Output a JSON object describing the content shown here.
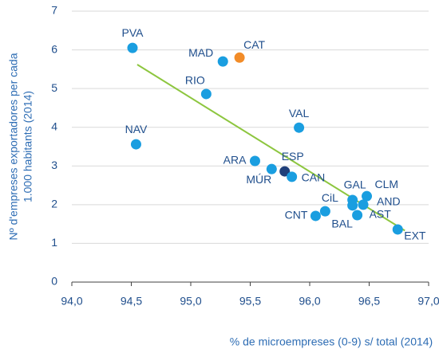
{
  "chart_data": {
    "type": "scatter",
    "ylabel": [
      "Nº d'empreses exportadores per cada",
      "1.000 habitants (2014)"
    ],
    "xlabel": "% de microempreses (0-9) s/ total (2014)",
    "labels": [
      "PVA",
      "MAD",
      "CAT",
      "RIO",
      "VAL",
      "NAV",
      "ARA",
      "MÚR",
      "ESP",
      "CAN",
      "GAL",
      "CLM",
      "AND",
      "AST",
      "BAL",
      "CiL",
      "CNT",
      "EXT"
    ],
    "x": [
      94.51,
      95.27,
      95.41,
      95.13,
      95.91,
      94.54,
      95.54,
      95.68,
      95.79,
      95.85,
      96.36,
      96.48,
      96.45,
      96.4,
      96.36,
      96.13,
      96.05,
      96.74
    ],
    "values": [
      6.05,
      5.7,
      5.8,
      4.86,
      3.99,
      3.56,
      3.13,
      2.92,
      2.86,
      2.72,
      2.12,
      2.22,
      2.0,
      1.73,
      1.98,
      1.83,
      1.71,
      1.36
    ],
    "colors": [
      "#1a9ee0",
      "#1a9ee0",
      "#f28c28",
      "#1a9ee0",
      "#1a9ee0",
      "#1a9ee0",
      "#1a9ee0",
      "#1a9ee0",
      "#1f3f7a",
      "#1a9ee0",
      "#1a9ee0",
      "#1a9ee0",
      "#1a9ee0",
      "#1a9ee0",
      "#1a9ee0",
      "#1a9ee0",
      "#1a9ee0",
      "#1a9ee0"
    ],
    "trendline": {
      "x": [
        94.55,
        96.8
      ],
      "values": [
        5.62,
        1.33
      ],
      "color": "#8dc63f"
    },
    "xlim": [
      94,
      97
    ],
    "xticks": [
      {
        "value": 94,
        "label": "94,0"
      },
      {
        "value": 94.5,
        "label": "94,5"
      },
      {
        "value": 95,
        "label": "95,0"
      },
      {
        "value": 95.5,
        "label": "95,5"
      },
      {
        "value": 96,
        "label": "96,0"
      },
      {
        "value": 96.5,
        "label": "96,5"
      },
      {
        "value": 97,
        "label": "97,0"
      }
    ],
    "ylim": [
      0,
      7
    ],
    "yticks": [
      0,
      1,
      2,
      3,
      4,
      5,
      6,
      7
    ],
    "grid": true
  }
}
